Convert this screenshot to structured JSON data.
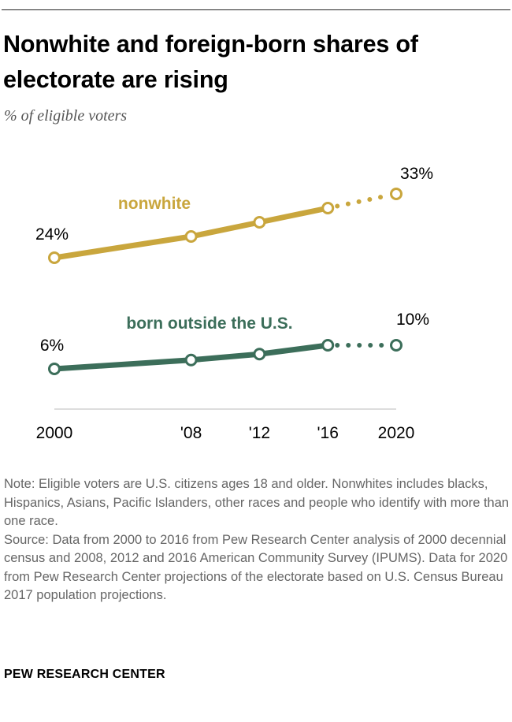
{
  "header": {
    "title": "Nonwhite and foreign-born shares of electorate are rising",
    "subtitle": "% of eligible voters"
  },
  "chart_data": {
    "type": "line",
    "x": [
      2000,
      2008,
      2012,
      2016,
      2020
    ],
    "tick_labels": [
      "2000",
      "'08",
      "'12",
      "'16",
      "2020"
    ],
    "projected_from": 2016,
    "series": [
      {
        "name": "nonwhite",
        "values": [
          24,
          27,
          29,
          31,
          33
        ],
        "color": "#c9a63d",
        "start_label": "24%",
        "end_label": "33%"
      },
      {
        "name": "born outside the U.S.",
        "values": [
          6,
          7.5,
          8.5,
          10,
          10
        ],
        "color": "#3c6e5a",
        "start_label": "6%",
        "end_label": "10%"
      }
    ],
    "xlim": [
      2000,
      2020
    ]
  },
  "notes": {
    "note": "Note: Eligible voters are U.S. citizens ages 18 and older. Nonwhites includes blacks, Hispanics, Asians, Pacific Islanders, other races and people who identify with more than one race.",
    "source": "Source: Data from 2000 to 2016 from Pew Research Center analysis of 2000 decennial census and 2008, 2012 and 2016 American Community Survey (IPUMS). Data for 2020 from Pew Research Center projections of the electorate based on U.S. Census Bureau 2017 population projections."
  },
  "footer": {
    "brand": "PEW RESEARCH CENTER"
  }
}
